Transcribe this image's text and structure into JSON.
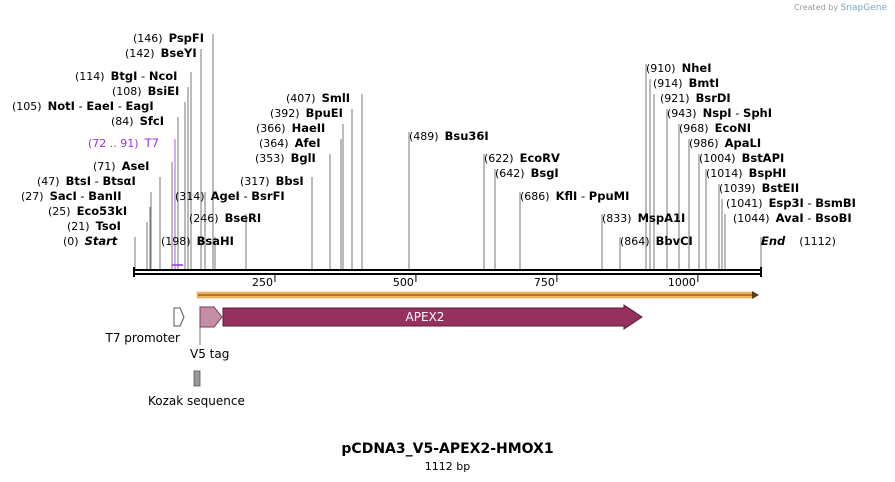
{
  "app": {
    "credit_prefix": "Created by",
    "credit_brand": "SnapGene"
  },
  "map": {
    "title": "pCDNA3_V5-APEX2-HMOX1",
    "length_label": "1112 bp",
    "length_bp": 1112,
    "ticks": [
      250,
      500,
      750,
      1000
    ]
  },
  "sites": [
    {
      "pos": "(0)",
      "names": [
        "Start"
      ],
      "bp": 0,
      "italic": true
    },
    {
      "pos": "(21)",
      "names": [
        "TsoI"
      ],
      "bp": 21
    },
    {
      "pos": "(25)",
      "names": [
        "Eco53kI"
      ],
      "bp": 25
    },
    {
      "pos": "(27)",
      "names": [
        "SacI",
        "BanII"
      ],
      "bp": 27
    },
    {
      "pos": "(47)",
      "names": [
        "BtsI",
        "BtsαI"
      ],
      "bp": 47
    },
    {
      "pos": "(71)",
      "names": [
        "AseI"
      ],
      "bp": 71
    },
    {
      "pos": "(72 .. 91)",
      "names": [
        "T7"
      ],
      "bp": 72,
      "color": "#9b30d9"
    },
    {
      "pos": "(84)",
      "names": [
        "SfcI"
      ],
      "bp": 84
    },
    {
      "pos": "(105)",
      "names": [
        "NotI",
        "EaeI",
        "EagI"
      ],
      "bp": 105
    },
    {
      "pos": "(108)",
      "names": [
        "BsiEI"
      ],
      "bp": 108
    },
    {
      "pos": "(114)",
      "names": [
        "BtgI",
        "NcoI"
      ],
      "bp": 114
    },
    {
      "pos": "(142)",
      "names": [
        "BseYI"
      ],
      "bp": 142
    },
    {
      "pos": "(146)",
      "names": [
        "PspFI"
      ],
      "bp": 146
    },
    {
      "pos": "(198)",
      "names": [
        "BsaHI"
      ],
      "bp": 198
    },
    {
      "pos": "(246)",
      "names": [
        "BseRI"
      ],
      "bp": 246
    },
    {
      "pos": "(314)",
      "names": [
        "AgeI",
        "BsrFI"
      ],
      "bp": 314
    },
    {
      "pos": "(317)",
      "names": [
        "BbsI"
      ],
      "bp": 317
    },
    {
      "pos": "(353)",
      "names": [
        "BglI"
      ],
      "bp": 353
    },
    {
      "pos": "(364)",
      "names": [
        "AfeI"
      ],
      "bp": 364
    },
    {
      "pos": "(366)",
      "names": [
        "HaeII"
      ],
      "bp": 366
    },
    {
      "pos": "(392)",
      "names": [
        "BpuEI"
      ],
      "bp": 392
    },
    {
      "pos": "(407)",
      "names": [
        "SmlI"
      ],
      "bp": 407
    },
    {
      "pos": "(489)",
      "names": [
        "Bsu36I"
      ],
      "bp": 489
    },
    {
      "pos": "(622)",
      "names": [
        "EcoRV"
      ],
      "bp": 622
    },
    {
      "pos": "(642)",
      "names": [
        "BsgI"
      ],
      "bp": 642
    },
    {
      "pos": "(686)",
      "names": [
        "KflI",
        "PpuMI"
      ],
      "bp": 686
    },
    {
      "pos": "(833)",
      "names": [
        "MspA1I"
      ],
      "bp": 833
    },
    {
      "pos": "(864)",
      "names": [
        "BbvCI"
      ],
      "bp": 864
    },
    {
      "pos": "(910)",
      "names": [
        "NheI"
      ],
      "bp": 910
    },
    {
      "pos": "(914)",
      "names": [
        "BmtI"
      ],
      "bp": 914
    },
    {
      "pos": "(921)",
      "names": [
        "BsrDI"
      ],
      "bp": 921
    },
    {
      "pos": "(943)",
      "names": [
        "NspI",
        "SphI"
      ],
      "bp": 943
    },
    {
      "pos": "(968)",
      "names": [
        "EcoNI"
      ],
      "bp": 968
    },
    {
      "pos": "(986)",
      "names": [
        "ApaLI"
      ],
      "bp": 986
    },
    {
      "pos": "(1004)",
      "names": [
        "BstAPI"
      ],
      "bp": 1004
    },
    {
      "pos": "(1014)",
      "names": [
        "BspHI"
      ],
      "bp": 1014
    },
    {
      "pos": "(1039)",
      "names": [
        "BstEII"
      ],
      "bp": 1039
    },
    {
      "pos": "(1041)",
      "names": [
        "Esp3I",
        "BsmBI"
      ],
      "bp": 1041
    },
    {
      "pos": "(1044)",
      "names": [
        "AvaI",
        "BsoBI"
      ],
      "bp": 1044
    },
    {
      "pos": "(1112)",
      "names": [
        "End"
      ],
      "bp": 1112,
      "italic": true
    }
  ],
  "features": [
    {
      "name": "APEX2",
      "color": "#95305f",
      "label_color": "#ffffff"
    },
    {
      "name": "V5 tag",
      "color": "#c48ea6"
    },
    {
      "name": "T7 promoter",
      "color": "#ffffff"
    },
    {
      "name": "Kozak sequence",
      "color": "#999999"
    }
  ],
  "orf_color": "#f5b75c"
}
